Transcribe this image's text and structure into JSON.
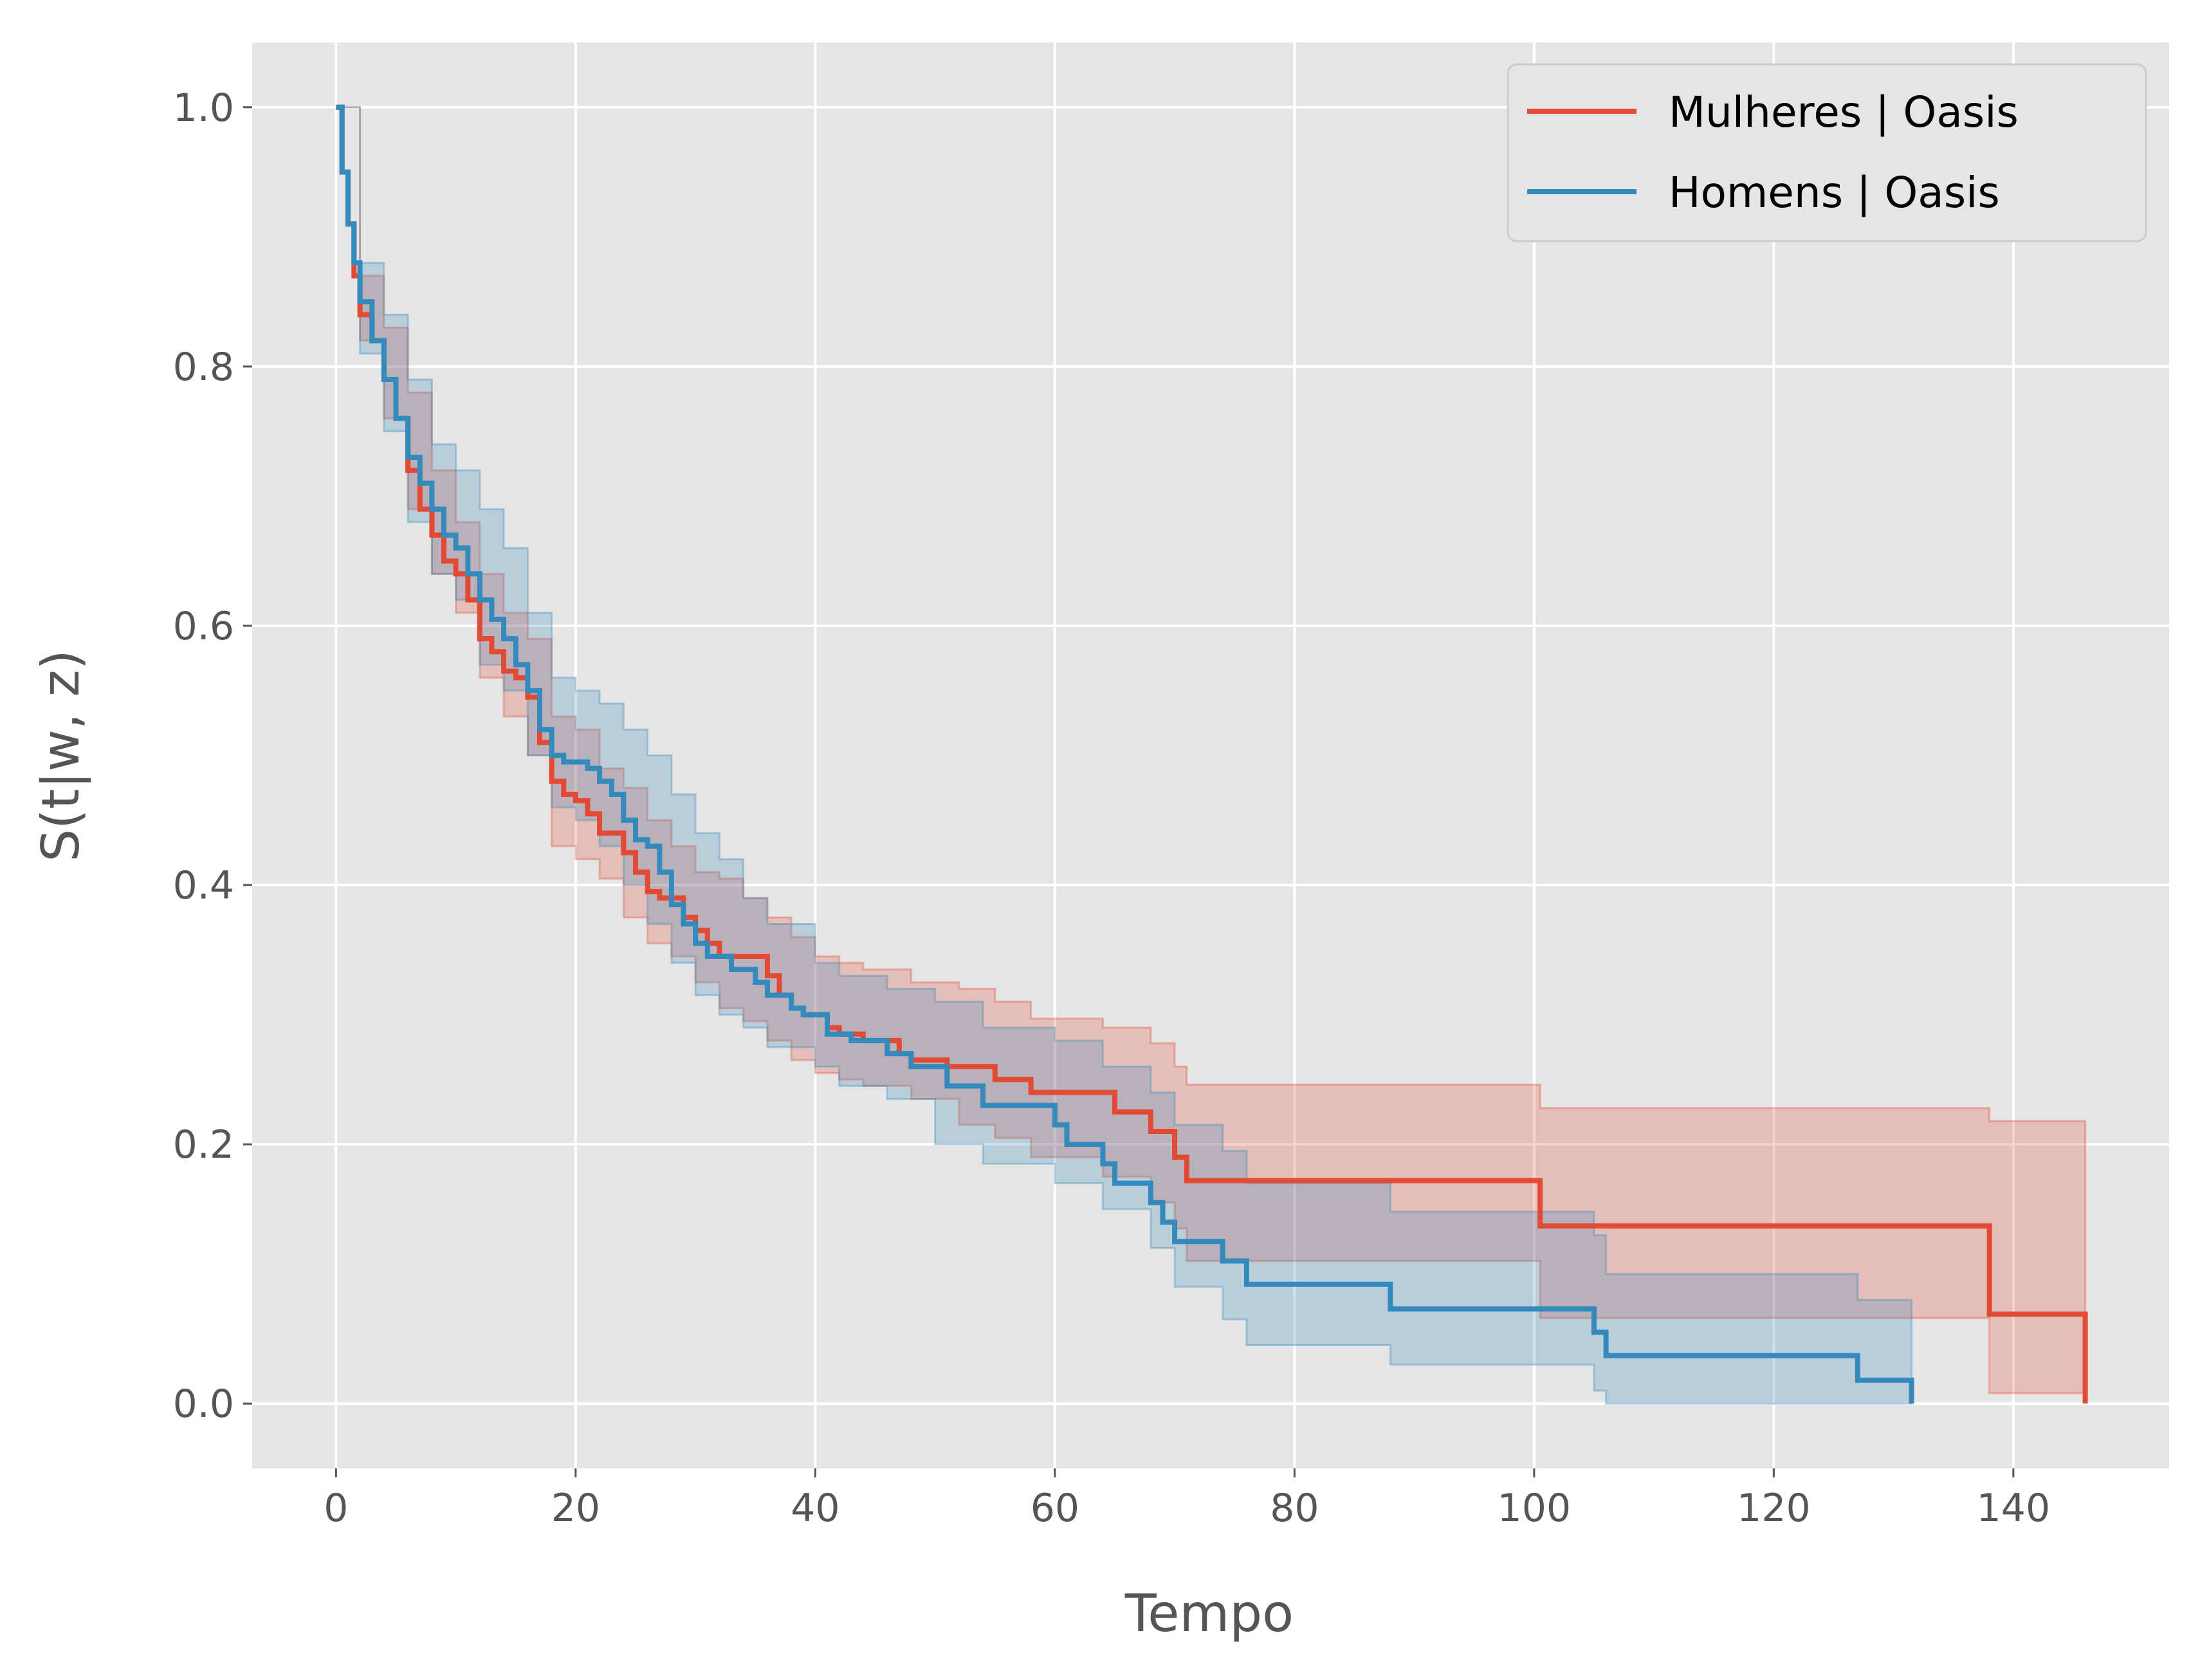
{
  "chart_data": {
    "type": "line",
    "subtype": "step",
    "xlabel": "Tempo",
    "ylabel": "S(t|w, z)",
    "xlim": [
      -7,
      153
    ],
    "ylim": [
      -0.05,
      1.05
    ],
    "x_ticks": [
      0,
      20,
      40,
      60,
      80,
      100,
      120,
      140
    ],
    "x_tick_labels": [
      "0",
      "20",
      "40",
      "60",
      "80",
      "100",
      "120",
      "140"
    ],
    "y_ticks": [
      0.0,
      0.2,
      0.4,
      0.6,
      0.8,
      1.0
    ],
    "y_tick_labels": [
      "0.0",
      "0.2",
      "0.4",
      "0.6",
      "0.8",
      "1.0"
    ],
    "grid": true,
    "background": "#E5E5E5",
    "legend_position": "top-right",
    "series": [
      {
        "name": "Mulheres | Oasis",
        "color": "#E24A33",
        "points": [
          [
            0,
            1.0
          ],
          [
            0.5,
            0.95
          ],
          [
            1,
            0.91
          ],
          [
            1.5,
            0.87
          ],
          [
            2,
            0.84
          ],
          [
            3,
            0.82
          ],
          [
            4,
            0.79
          ],
          [
            5,
            0.76
          ],
          [
            6,
            0.72
          ],
          [
            7,
            0.69
          ],
          [
            8,
            0.67
          ],
          [
            9,
            0.65
          ],
          [
            10,
            0.64
          ],
          [
            11,
            0.62
          ],
          [
            12,
            0.59
          ],
          [
            13,
            0.58
          ],
          [
            14,
            0.565
          ],
          [
            15,
            0.56
          ],
          [
            16,
            0.545
          ],
          [
            17,
            0.51
          ],
          [
            18,
            0.48
          ],
          [
            19,
            0.47
          ],
          [
            20,
            0.465
          ],
          [
            21,
            0.455
          ],
          [
            22,
            0.44
          ],
          [
            24,
            0.425
          ],
          [
            25,
            0.41
          ],
          [
            26,
            0.395
          ],
          [
            27,
            0.39
          ],
          [
            29,
            0.375
          ],
          [
            30,
            0.365
          ],
          [
            31,
            0.355
          ],
          [
            32,
            0.345
          ],
          [
            36,
            0.33
          ],
          [
            37,
            0.315
          ],
          [
            38,
            0.305
          ],
          [
            39,
            0.3
          ],
          [
            41,
            0.29
          ],
          [
            42,
            0.285
          ],
          [
            44,
            0.28
          ],
          [
            47,
            0.27
          ],
          [
            48,
            0.265
          ],
          [
            51,
            0.26
          ],
          [
            55,
            0.25
          ],
          [
            58,
            0.24
          ],
          [
            65,
            0.225
          ],
          [
            68,
            0.21
          ],
          [
            70,
            0.19
          ],
          [
            71,
            0.172
          ],
          [
            100.5,
            0.137
          ],
          [
            138,
            0.069
          ],
          [
            146,
            0.0
          ]
        ],
        "ci_upper": [
          [
            0,
            1.0
          ],
          [
            2,
            0.87
          ],
          [
            4,
            0.83
          ],
          [
            6,
            0.78
          ],
          [
            8,
            0.72
          ],
          [
            10,
            0.68
          ],
          [
            12,
            0.64
          ],
          [
            14,
            0.61
          ],
          [
            16,
            0.59
          ],
          [
            18,
            0.53
          ],
          [
            20,
            0.52
          ],
          [
            22,
            0.49
          ],
          [
            24,
            0.475
          ],
          [
            26,
            0.45
          ],
          [
            28,
            0.43
          ],
          [
            30,
            0.41
          ],
          [
            32,
            0.405
          ],
          [
            34,
            0.39
          ],
          [
            36,
            0.375
          ],
          [
            38,
            0.36
          ],
          [
            40,
            0.345
          ],
          [
            42,
            0.34
          ],
          [
            44,
            0.335
          ],
          [
            48,
            0.325
          ],
          [
            52,
            0.32
          ],
          [
            55,
            0.31
          ],
          [
            58,
            0.297
          ],
          [
            64,
            0.29
          ],
          [
            68,
            0.278
          ],
          [
            70,
            0.26
          ],
          [
            71,
            0.246
          ],
          [
            100.5,
            0.228
          ],
          [
            138,
            0.218
          ],
          [
            146,
            0.218
          ]
        ],
        "ci_lower": [
          [
            0,
            1.0
          ],
          [
            2,
            0.82
          ],
          [
            4,
            0.76
          ],
          [
            6,
            0.69
          ],
          [
            8,
            0.64
          ],
          [
            10,
            0.61
          ],
          [
            12,
            0.56
          ],
          [
            14,
            0.53
          ],
          [
            16,
            0.5
          ],
          [
            18,
            0.43
          ],
          [
            20,
            0.42
          ],
          [
            22,
            0.405
          ],
          [
            24,
            0.375
          ],
          [
            26,
            0.355
          ],
          [
            28,
            0.345
          ],
          [
            30,
            0.325
          ],
          [
            32,
            0.305
          ],
          [
            34,
            0.295
          ],
          [
            36,
            0.28
          ],
          [
            38,
            0.265
          ],
          [
            40,
            0.255
          ],
          [
            42,
            0.25
          ],
          [
            44,
            0.245
          ],
          [
            48,
            0.235
          ],
          [
            52,
            0.215
          ],
          [
            55,
            0.205
          ],
          [
            58,
            0.19
          ],
          [
            64,
            0.175
          ],
          [
            68,
            0.155
          ],
          [
            70,
            0.135
          ],
          [
            71,
            0.11
          ],
          [
            100.5,
            0.066
          ],
          [
            138,
            0.008
          ],
          [
            146,
            0.008
          ]
        ]
      },
      {
        "name": "Homens | Oasis",
        "color": "#348ABD",
        "points": [
          [
            0,
            1.0
          ],
          [
            0.5,
            0.95
          ],
          [
            1,
            0.91
          ],
          [
            1.5,
            0.88
          ],
          [
            2,
            0.85
          ],
          [
            3,
            0.82
          ],
          [
            4,
            0.79
          ],
          [
            5,
            0.76
          ],
          [
            6,
            0.73
          ],
          [
            7,
            0.71
          ],
          [
            8,
            0.69
          ],
          [
            9,
            0.67
          ],
          [
            10,
            0.66
          ],
          [
            11,
            0.64
          ],
          [
            12,
            0.62
          ],
          [
            13,
            0.605
          ],
          [
            14,
            0.59
          ],
          [
            15,
            0.57
          ],
          [
            16,
            0.55
          ],
          [
            17,
            0.52
          ],
          [
            18,
            0.5
          ],
          [
            19,
            0.495
          ],
          [
            21,
            0.49
          ],
          [
            22,
            0.48
          ],
          [
            23,
            0.47
          ],
          [
            24,
            0.45
          ],
          [
            25,
            0.435
          ],
          [
            26,
            0.43
          ],
          [
            27,
            0.41
          ],
          [
            28,
            0.385
          ],
          [
            29,
            0.37
          ],
          [
            30,
            0.355
          ],
          [
            31,
            0.345
          ],
          [
            33,
            0.335
          ],
          [
            35,
            0.325
          ],
          [
            36,
            0.315
          ],
          [
            38,
            0.305
          ],
          [
            39,
            0.3
          ],
          [
            41,
            0.285
          ],
          [
            43,
            0.28
          ],
          [
            46,
            0.27
          ],
          [
            48,
            0.26
          ],
          [
            51,
            0.245
          ],
          [
            54,
            0.23
          ],
          [
            60,
            0.215
          ],
          [
            61,
            0.2
          ],
          [
            64,
            0.185
          ],
          [
            65,
            0.17
          ],
          [
            68,
            0.155
          ],
          [
            69,
            0.14
          ],
          [
            70,
            0.125
          ],
          [
            74,
            0.11
          ],
          [
            76,
            0.092
          ],
          [
            88,
            0.073
          ],
          [
            105,
            0.055
          ],
          [
            106,
            0.037
          ],
          [
            127,
            0.018
          ],
          [
            131.5,
            0.0
          ]
        ],
        "ci_upper": [
          [
            0,
            1.0
          ],
          [
            2,
            0.88
          ],
          [
            4,
            0.84
          ],
          [
            6,
            0.79
          ],
          [
            8,
            0.74
          ],
          [
            10,
            0.72
          ],
          [
            12,
            0.69
          ],
          [
            14,
            0.66
          ],
          [
            16,
            0.61
          ],
          [
            18,
            0.56
          ],
          [
            20,
            0.55
          ],
          [
            22,
            0.54
          ],
          [
            24,
            0.52
          ],
          [
            26,
            0.5
          ],
          [
            28,
            0.47
          ],
          [
            30,
            0.44
          ],
          [
            32,
            0.42
          ],
          [
            34,
            0.39
          ],
          [
            36,
            0.37
          ],
          [
            40,
            0.34
          ],
          [
            42,
            0.33
          ],
          [
            46,
            0.32
          ],
          [
            50,
            0.31
          ],
          [
            54,
            0.29
          ],
          [
            60,
            0.28
          ],
          [
            64,
            0.26
          ],
          [
            68,
            0.24
          ],
          [
            70,
            0.215
          ],
          [
            74,
            0.195
          ],
          [
            76,
            0.17
          ],
          [
            88,
            0.148
          ],
          [
            105,
            0.13
          ],
          [
            106,
            0.1
          ],
          [
            127,
            0.08
          ],
          [
            131.5,
            0.08
          ]
        ],
        "ci_lower": [
          [
            0,
            1.0
          ],
          [
            2,
            0.81
          ],
          [
            4,
            0.75
          ],
          [
            6,
            0.68
          ],
          [
            8,
            0.64
          ],
          [
            10,
            0.62
          ],
          [
            12,
            0.57
          ],
          [
            14,
            0.55
          ],
          [
            16,
            0.5
          ],
          [
            18,
            0.46
          ],
          [
            20,
            0.45
          ],
          [
            22,
            0.43
          ],
          [
            24,
            0.4
          ],
          [
            26,
            0.37
          ],
          [
            28,
            0.34
          ],
          [
            30,
            0.315
          ],
          [
            32,
            0.3
          ],
          [
            34,
            0.29
          ],
          [
            36,
            0.275
          ],
          [
            40,
            0.26
          ],
          [
            42,
            0.245
          ],
          [
            46,
            0.235
          ],
          [
            50,
            0.2
          ],
          [
            54,
            0.185
          ],
          [
            60,
            0.17
          ],
          [
            64,
            0.15
          ],
          [
            68,
            0.12
          ],
          [
            70,
            0.09
          ],
          [
            74,
            0.065
          ],
          [
            76,
            0.045
          ],
          [
            88,
            0.03
          ],
          [
            105,
            0.01
          ],
          [
            106,
            0.0
          ],
          [
            127,
            0.0
          ],
          [
            131.5,
            0.0
          ]
        ]
      }
    ]
  }
}
